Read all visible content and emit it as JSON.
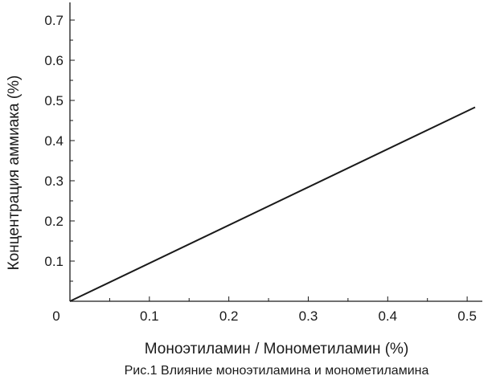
{
  "chart_data": {
    "type": "line",
    "xlabel": "Моноэтиламин / Монометиламин (%)",
    "ylabel": "Концентрация аммиака (%)",
    "caption": "Рис.1 Влияние моноэтиламина и монометиламина",
    "origin_label": "0",
    "xlim": [
      0,
      0.52
    ],
    "ylim": [
      0,
      0.75
    ],
    "x_ticks": [
      0.1,
      0.2,
      0.3,
      0.4,
      0.5
    ],
    "x_tick_labels": [
      "0.1",
      "0.2",
      "0.3",
      "0.4",
      "0.5"
    ],
    "y_ticks": [
      0.1,
      0.2,
      0.3,
      0.4,
      0.5,
      0.6,
      0.7
    ],
    "y_tick_labels": [
      "0.1",
      "0.2",
      "0.3",
      "0.4",
      "0.5",
      "0.6",
      "0.7"
    ],
    "grid": false,
    "series": [
      {
        "x": [
          0,
          0.51
        ],
        "y": [
          0,
          0.483
        ]
      }
    ],
    "colors": {
      "line": "#1a1a1a",
      "axis": "#1a1a1a"
    }
  }
}
